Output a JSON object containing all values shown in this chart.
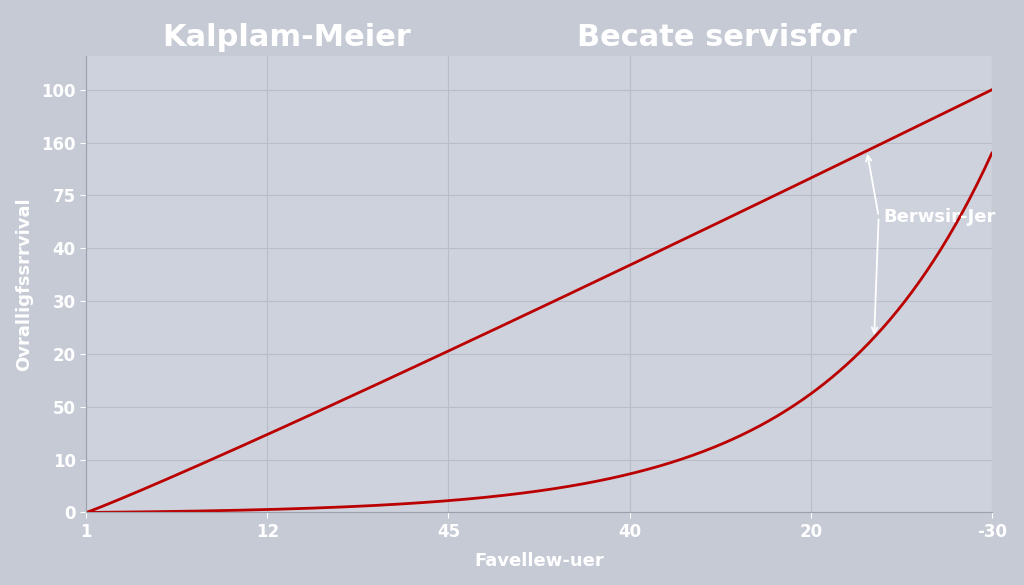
{
  "title_left": "Kalplam-Meier",
  "title_right": "Becate servisfor",
  "xlabel": "Favellew-uer",
  "ylabel": "Ovralligfssrrvival",
  "background_color": "#c5cad5",
  "plot_bg_color": "#cdd2dd",
  "grid_color": "#b8bdc9",
  "line_color": "#bb0000",
  "annotation_text": "Berwsir-Jer",
  "xtick_labels": [
    "1",
    "12",
    "45",
    "40",
    "20",
    "-30"
  ],
  "ytick_labels": [
    "0",
    "10",
    "50",
    "20",
    "30",
    "40",
    "75",
    "160",
    "100"
  ],
  "title_fontsize": 22,
  "axis_label_fontsize": 13,
  "tick_fontsize": 12,
  "annotation_fontsize": 13,
  "line_width": 2.0
}
